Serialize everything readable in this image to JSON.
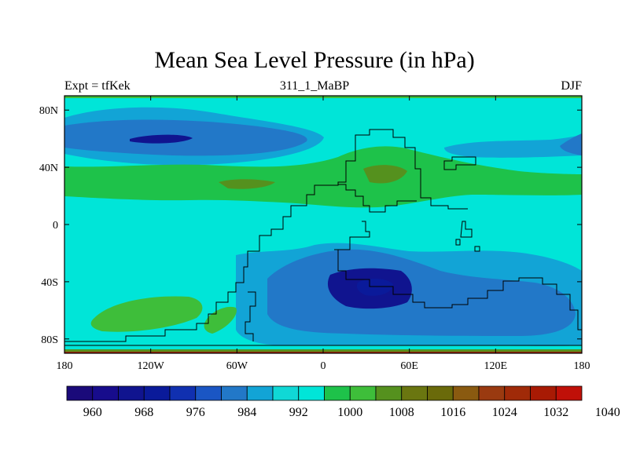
{
  "title": "Mean Sea Level Pressure (in hPa)",
  "left_string": "Expt = tfKek",
  "center_string": "311_1_MaBP",
  "right_string": "DJF",
  "map": {
    "projection": "cylindrical equidistant",
    "lon_range": [
      -180,
      180
    ],
    "lat_range": [
      -90,
      90
    ],
    "lon_ticks": [
      {
        "value": -180,
        "label": "180"
      },
      {
        "value": -120,
        "label": "120W"
      },
      {
        "value": -60,
        "label": "60W"
      },
      {
        "value": 0,
        "label": "0"
      },
      {
        "value": 60,
        "label": "60E"
      },
      {
        "value": 120,
        "label": "120E"
      },
      {
        "value": 180,
        "label": "180"
      }
    ],
    "lat_ticks": [
      {
        "value": 80,
        "label": "80N"
      },
      {
        "value": 40,
        "label": "40N"
      },
      {
        "value": 0,
        "label": "0"
      },
      {
        "value": -40,
        "label": "40S"
      },
      {
        "value": -80,
        "label": "80S"
      }
    ],
    "background_level_color": "#00e5d8"
  },
  "colorbar": {
    "colors": [
      "#1a0a7a",
      "#170c8c",
      "#10148f",
      "#0a1a9a",
      "#1030b0",
      "#1a56c4",
      "#2278c8",
      "#12a4d6",
      "#10d8d6",
      "#00e5d8",
      "#1ec24a",
      "#3ebe3a",
      "#55911e",
      "#6a7610",
      "#6a6a0a",
      "#8a5a10",
      "#9a3a10",
      "#a02a08",
      "#a81a04",
      "#c01008"
    ],
    "labels": [
      "960",
      "968",
      "976",
      "984",
      "992",
      "1000",
      "1008",
      "1016",
      "1024",
      "1032",
      "1040"
    ]
  }
}
